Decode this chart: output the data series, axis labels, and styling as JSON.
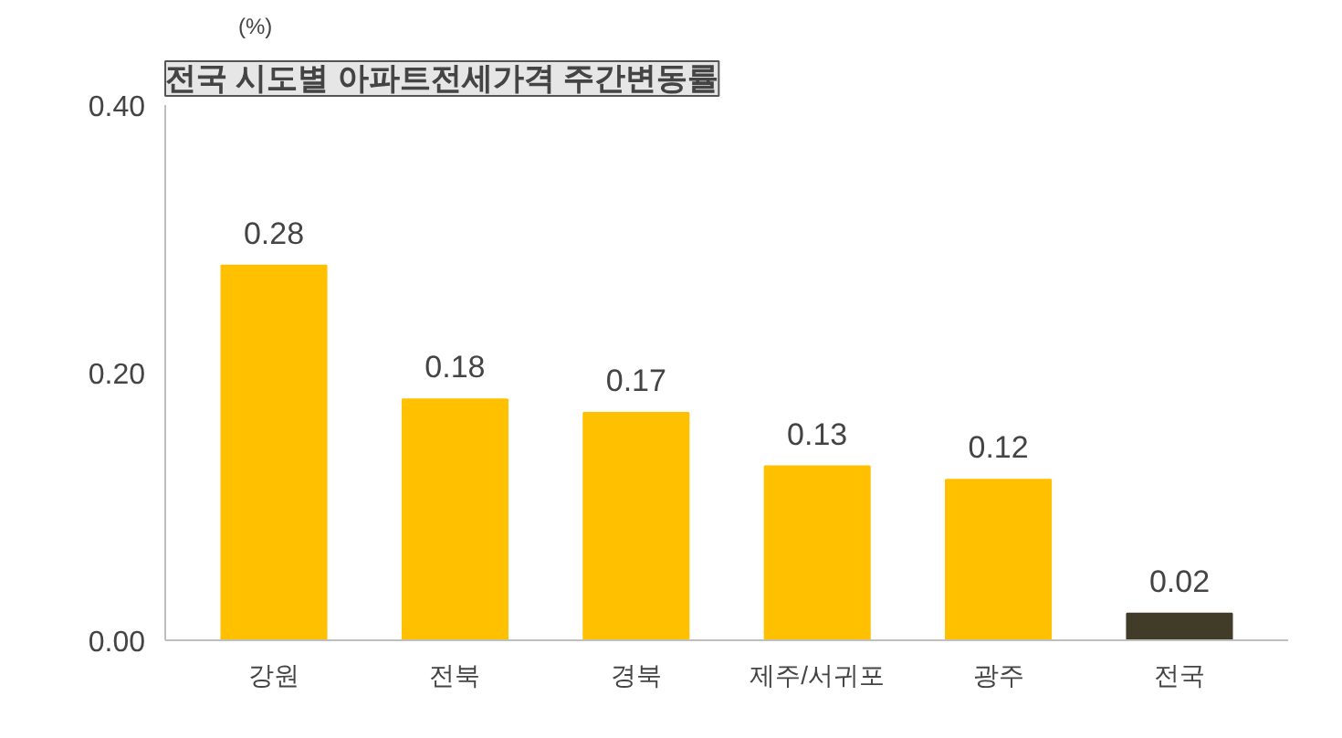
{
  "chart_data": {
    "type": "bar",
    "title": "전국 시도별 아파트전세가격 주간변동률",
    "ylabel": "(%)",
    "categories": [
      "강원",
      "전북",
      "경북",
      "제주/서귀포",
      "광주",
      "전국"
    ],
    "values": [
      0.28,
      0.18,
      0.17,
      0.13,
      0.12,
      0.02
    ],
    "colors": [
      "#ffc000",
      "#ffc000",
      "#ffc000",
      "#ffc000",
      "#ffc000",
      "#403c28"
    ],
    "ylim": [
      0,
      0.4
    ],
    "yticks": [
      {
        "value": 0,
        "label": "0.00"
      },
      {
        "value": 0.2,
        "label": "0.20"
      },
      {
        "value": 0.4,
        "label": "0.40"
      }
    ],
    "data_labels": true,
    "grid": false
  }
}
